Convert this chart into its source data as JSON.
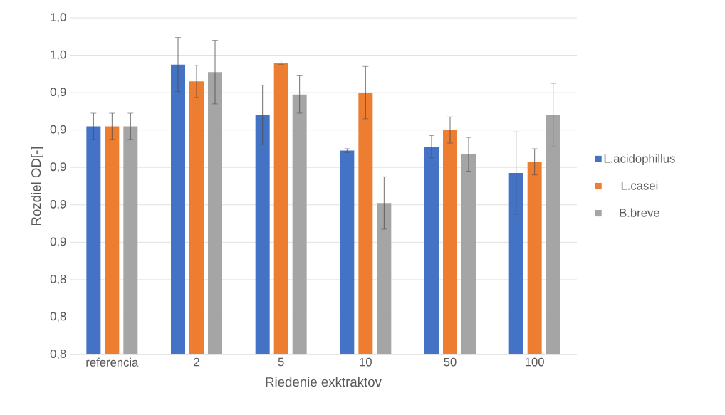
{
  "chart_data": {
    "type": "bar",
    "xlabel": "Riedenie exktraktov",
    "ylabel": "Rozdiel OD[-]",
    "categories": [
      "referencia",
      "2",
      "5",
      "10",
      "50",
      "100"
    ],
    "series": [
      {
        "name": "L.acidophillus",
        "color": "#4472c4",
        "values": [
          0.922,
          0.955,
          0.928,
          0.909,
          0.911,
          0.897
        ],
        "errors": [
          0.007,
          0.0145,
          0.016,
          0.001,
          0.006,
          0.022
        ]
      },
      {
        "name": "L.casei",
        "color": "#ed7d31",
        "values": [
          0.922,
          0.946,
          0.956,
          0.94,
          0.92,
          0.903
        ],
        "errors": [
          0.007,
          0.0086,
          0.001,
          0.014,
          0.007,
          0.007
        ]
      },
      {
        "name": "B.breve",
        "color": "#a5a5a5",
        "values": [
          0.922,
          0.951,
          0.939,
          0.881,
          0.907,
          0.928
        ],
        "errors": [
          0.007,
          0.017,
          0.01,
          0.014,
          0.009,
          0.017
        ]
      }
    ],
    "ylim": [
      0.8,
      0.98
    ],
    "yticks": [
      {
        "value": 0.8,
        "label": "0,8"
      },
      {
        "value": 0.82,
        "label": "0,8"
      },
      {
        "value": 0.84,
        "label": "0,8"
      },
      {
        "value": 0.86,
        "label": "0,9"
      },
      {
        "value": 0.88,
        "label": "0,9"
      },
      {
        "value": 0.9,
        "label": "0,9"
      },
      {
        "value": 0.92,
        "label": "0,9"
      },
      {
        "value": 0.94,
        "label": "0,9"
      },
      {
        "value": 0.96,
        "label": "1,0"
      },
      {
        "value": 0.98,
        "label": "1,0"
      }
    ],
    "grid": "y",
    "legend": "right"
  }
}
